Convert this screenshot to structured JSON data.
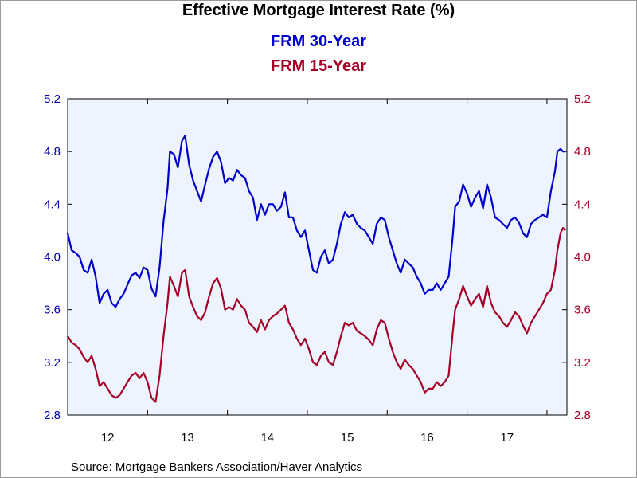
{
  "colors": {
    "fill_bg": "#eef4ff",
    "frm30": "#0000cc",
    "frm15": "#a50026",
    "axis_left_text": "#0000aa",
    "axis_right_text": "#a50026"
  },
  "chart_data": {
    "type": "line",
    "title": "Effective Mortgage Interest Rate (%)",
    "ylim": [
      2.8,
      5.2
    ],
    "yticks": [
      "2.8",
      "3.2",
      "3.6",
      "4.0",
      "4.4",
      "4.8",
      "5.2"
    ],
    "xlim": [
      2012.0,
      2018.25
    ],
    "xtick_labels": [
      "12",
      "13",
      "14",
      "15",
      "16",
      "17"
    ],
    "grid": false,
    "legend_position": "top-center",
    "series": [
      {
        "name": "FRM 30-Year",
        "color": "#0000cc",
        "points": [
          [
            2012.0,
            4.18
          ],
          [
            2012.05,
            4.05
          ],
          [
            2012.1,
            4.03
          ],
          [
            2012.15,
            4.0
          ],
          [
            2012.2,
            3.9
          ],
          [
            2012.25,
            3.88
          ],
          [
            2012.3,
            3.98
          ],
          [
            2012.35,
            3.85
          ],
          [
            2012.4,
            3.65
          ],
          [
            2012.45,
            3.72
          ],
          [
            2012.5,
            3.75
          ],
          [
            2012.55,
            3.65
          ],
          [
            2012.6,
            3.62
          ],
          [
            2012.65,
            3.68
          ],
          [
            2012.7,
            3.72
          ],
          [
            2012.75,
            3.79
          ],
          [
            2012.8,
            3.86
          ],
          [
            2012.85,
            3.88
          ],
          [
            2012.9,
            3.84
          ],
          [
            2012.95,
            3.92
          ],
          [
            2013.0,
            3.9
          ],
          [
            2013.05,
            3.76
          ],
          [
            2013.1,
            3.7
          ],
          [
            2013.15,
            3.92
          ],
          [
            2013.2,
            4.27
          ],
          [
            2013.25,
            4.52
          ],
          [
            2013.28,
            4.8
          ],
          [
            2013.33,
            4.78
          ],
          [
            2013.38,
            4.68
          ],
          [
            2013.43,
            4.88
          ],
          [
            2013.47,
            4.92
          ],
          [
            2013.52,
            4.7
          ],
          [
            2013.57,
            4.58
          ],
          [
            2013.62,
            4.5
          ],
          [
            2013.67,
            4.42
          ],
          [
            2013.72,
            4.55
          ],
          [
            2013.77,
            4.67
          ],
          [
            2013.82,
            4.76
          ],
          [
            2013.87,
            4.8
          ],
          [
            2013.92,
            4.72
          ],
          [
            2013.97,
            4.56
          ],
          [
            2014.02,
            4.6
          ],
          [
            2014.07,
            4.58
          ],
          [
            2014.12,
            4.66
          ],
          [
            2014.17,
            4.62
          ],
          [
            2014.22,
            4.6
          ],
          [
            2014.27,
            4.5
          ],
          [
            2014.32,
            4.45
          ],
          [
            2014.37,
            4.28
          ],
          [
            2014.42,
            4.4
          ],
          [
            2014.47,
            4.32
          ],
          [
            2014.52,
            4.4
          ],
          [
            2014.57,
            4.4
          ],
          [
            2014.62,
            4.35
          ],
          [
            2014.67,
            4.38
          ],
          [
            2014.72,
            4.49
          ],
          [
            2014.77,
            4.3
          ],
          [
            2014.82,
            4.3
          ],
          [
            2014.87,
            4.2
          ],
          [
            2014.92,
            4.15
          ],
          [
            2014.97,
            4.2
          ],
          [
            2015.02,
            4.05
          ],
          [
            2015.07,
            3.9
          ],
          [
            2015.12,
            3.88
          ],
          [
            2015.17,
            4.0
          ],
          [
            2015.22,
            4.05
          ],
          [
            2015.27,
            3.95
          ],
          [
            2015.32,
            3.98
          ],
          [
            2015.37,
            4.1
          ],
          [
            2015.42,
            4.25
          ],
          [
            2015.47,
            4.34
          ],
          [
            2015.52,
            4.3
          ],
          [
            2015.57,
            4.32
          ],
          [
            2015.62,
            4.25
          ],
          [
            2015.67,
            4.22
          ],
          [
            2015.72,
            4.2
          ],
          [
            2015.77,
            4.15
          ],
          [
            2015.82,
            4.1
          ],
          [
            2015.87,
            4.25
          ],
          [
            2015.92,
            4.3
          ],
          [
            2015.97,
            4.28
          ],
          [
            2016.02,
            4.15
          ],
          [
            2016.07,
            4.05
          ],
          [
            2016.12,
            3.95
          ],
          [
            2016.17,
            3.88
          ],
          [
            2016.22,
            3.98
          ],
          [
            2016.27,
            3.95
          ],
          [
            2016.32,
            3.92
          ],
          [
            2016.37,
            3.85
          ],
          [
            2016.42,
            3.8
          ],
          [
            2016.47,
            3.72
          ],
          [
            2016.52,
            3.75
          ],
          [
            2016.57,
            3.75
          ],
          [
            2016.62,
            3.8
          ],
          [
            2016.67,
            3.75
          ],
          [
            2016.72,
            3.8
          ],
          [
            2016.77,
            3.85
          ],
          [
            2016.82,
            4.15
          ],
          [
            2016.85,
            4.38
          ],
          [
            2016.9,
            4.42
          ],
          [
            2016.95,
            4.55
          ],
          [
            2017.0,
            4.48
          ],
          [
            2017.05,
            4.38
          ],
          [
            2017.1,
            4.45
          ],
          [
            2017.15,
            4.5
          ],
          [
            2017.2,
            4.37
          ],
          [
            2017.25,
            4.55
          ],
          [
            2017.3,
            4.45
          ],
          [
            2017.35,
            4.3
          ],
          [
            2017.4,
            4.28
          ],
          [
            2017.45,
            4.25
          ],
          [
            2017.5,
            4.22
          ],
          [
            2017.55,
            4.28
          ],
          [
            2017.6,
            4.3
          ],
          [
            2017.65,
            4.26
          ],
          [
            2017.7,
            4.18
          ],
          [
            2017.75,
            4.15
          ],
          [
            2017.8,
            4.25
          ],
          [
            2017.85,
            4.28
          ],
          [
            2017.9,
            4.3
          ],
          [
            2017.95,
            4.32
          ],
          [
            2018.0,
            4.3
          ],
          [
            2018.05,
            4.5
          ],
          [
            2018.1,
            4.65
          ],
          [
            2018.13,
            4.8
          ],
          [
            2018.17,
            4.82
          ],
          [
            2018.2,
            4.8
          ],
          [
            2018.23,
            4.8
          ]
        ]
      },
      {
        "name": "FRM 15-Year",
        "color": "#a50026",
        "points": [
          [
            2012.0,
            3.4
          ],
          [
            2012.05,
            3.35
          ],
          [
            2012.1,
            3.33
          ],
          [
            2012.15,
            3.3
          ],
          [
            2012.2,
            3.24
          ],
          [
            2012.25,
            3.2
          ],
          [
            2012.3,
            3.25
          ],
          [
            2012.35,
            3.15
          ],
          [
            2012.4,
            3.02
          ],
          [
            2012.45,
            3.05
          ],
          [
            2012.5,
            3.0
          ],
          [
            2012.55,
            2.95
          ],
          [
            2012.6,
            2.93
          ],
          [
            2012.65,
            2.95
          ],
          [
            2012.7,
            3.0
          ],
          [
            2012.75,
            3.05
          ],
          [
            2012.8,
            3.1
          ],
          [
            2012.85,
            3.12
          ],
          [
            2012.9,
            3.08
          ],
          [
            2012.95,
            3.12
          ],
          [
            2013.0,
            3.05
          ],
          [
            2013.05,
            2.93
          ],
          [
            2013.1,
            2.9
          ],
          [
            2013.15,
            3.1
          ],
          [
            2013.2,
            3.4
          ],
          [
            2013.25,
            3.65
          ],
          [
            2013.28,
            3.85
          ],
          [
            2013.33,
            3.78
          ],
          [
            2013.38,
            3.7
          ],
          [
            2013.43,
            3.88
          ],
          [
            2013.47,
            3.9
          ],
          [
            2013.52,
            3.7
          ],
          [
            2013.57,
            3.62
          ],
          [
            2013.62,
            3.55
          ],
          [
            2013.67,
            3.52
          ],
          [
            2013.72,
            3.58
          ],
          [
            2013.77,
            3.7
          ],
          [
            2013.82,
            3.8
          ],
          [
            2013.87,
            3.84
          ],
          [
            2013.92,
            3.76
          ],
          [
            2013.97,
            3.6
          ],
          [
            2014.02,
            3.62
          ],
          [
            2014.07,
            3.6
          ],
          [
            2014.12,
            3.68
          ],
          [
            2014.17,
            3.63
          ],
          [
            2014.22,
            3.6
          ],
          [
            2014.27,
            3.5
          ],
          [
            2014.32,
            3.47
          ],
          [
            2014.37,
            3.43
          ],
          [
            2014.42,
            3.52
          ],
          [
            2014.47,
            3.45
          ],
          [
            2014.52,
            3.52
          ],
          [
            2014.57,
            3.55
          ],
          [
            2014.62,
            3.57
          ],
          [
            2014.67,
            3.6
          ],
          [
            2014.72,
            3.63
          ],
          [
            2014.77,
            3.5
          ],
          [
            2014.82,
            3.45
          ],
          [
            2014.87,
            3.38
          ],
          [
            2014.92,
            3.33
          ],
          [
            2014.97,
            3.38
          ],
          [
            2015.02,
            3.3
          ],
          [
            2015.07,
            3.2
          ],
          [
            2015.12,
            3.18
          ],
          [
            2015.17,
            3.25
          ],
          [
            2015.22,
            3.28
          ],
          [
            2015.27,
            3.2
          ],
          [
            2015.32,
            3.18
          ],
          [
            2015.37,
            3.28
          ],
          [
            2015.42,
            3.4
          ],
          [
            2015.47,
            3.5
          ],
          [
            2015.52,
            3.48
          ],
          [
            2015.57,
            3.5
          ],
          [
            2015.62,
            3.44
          ],
          [
            2015.67,
            3.42
          ],
          [
            2015.72,
            3.4
          ],
          [
            2015.77,
            3.37
          ],
          [
            2015.82,
            3.33
          ],
          [
            2015.87,
            3.45
          ],
          [
            2015.92,
            3.52
          ],
          [
            2015.97,
            3.5
          ],
          [
            2016.02,
            3.38
          ],
          [
            2016.07,
            3.28
          ],
          [
            2016.12,
            3.2
          ],
          [
            2016.17,
            3.15
          ],
          [
            2016.22,
            3.22
          ],
          [
            2016.27,
            3.18
          ],
          [
            2016.32,
            3.15
          ],
          [
            2016.37,
            3.1
          ],
          [
            2016.42,
            3.05
          ],
          [
            2016.47,
            2.97
          ],
          [
            2016.52,
            3.0
          ],
          [
            2016.57,
            3.0
          ],
          [
            2016.62,
            3.05
          ],
          [
            2016.67,
            3.02
          ],
          [
            2016.72,
            3.05
          ],
          [
            2016.77,
            3.1
          ],
          [
            2016.82,
            3.42
          ],
          [
            2016.85,
            3.6
          ],
          [
            2016.9,
            3.68
          ],
          [
            2016.95,
            3.78
          ],
          [
            2017.0,
            3.7
          ],
          [
            2017.05,
            3.63
          ],
          [
            2017.1,
            3.68
          ],
          [
            2017.15,
            3.72
          ],
          [
            2017.2,
            3.62
          ],
          [
            2017.25,
            3.78
          ],
          [
            2017.3,
            3.65
          ],
          [
            2017.35,
            3.58
          ],
          [
            2017.4,
            3.55
          ],
          [
            2017.45,
            3.5
          ],
          [
            2017.5,
            3.47
          ],
          [
            2017.55,
            3.52
          ],
          [
            2017.6,
            3.58
          ],
          [
            2017.65,
            3.55
          ],
          [
            2017.7,
            3.48
          ],
          [
            2017.75,
            3.42
          ],
          [
            2017.8,
            3.5
          ],
          [
            2017.85,
            3.55
          ],
          [
            2017.9,
            3.6
          ],
          [
            2017.95,
            3.65
          ],
          [
            2018.0,
            3.72
          ],
          [
            2018.05,
            3.75
          ],
          [
            2018.1,
            3.9
          ],
          [
            2018.13,
            4.05
          ],
          [
            2018.17,
            4.18
          ],
          [
            2018.2,
            4.22
          ],
          [
            2018.23,
            4.2
          ]
        ]
      }
    ],
    "source": "Source:  Mortgage Bankers Association/Haver Analytics"
  }
}
